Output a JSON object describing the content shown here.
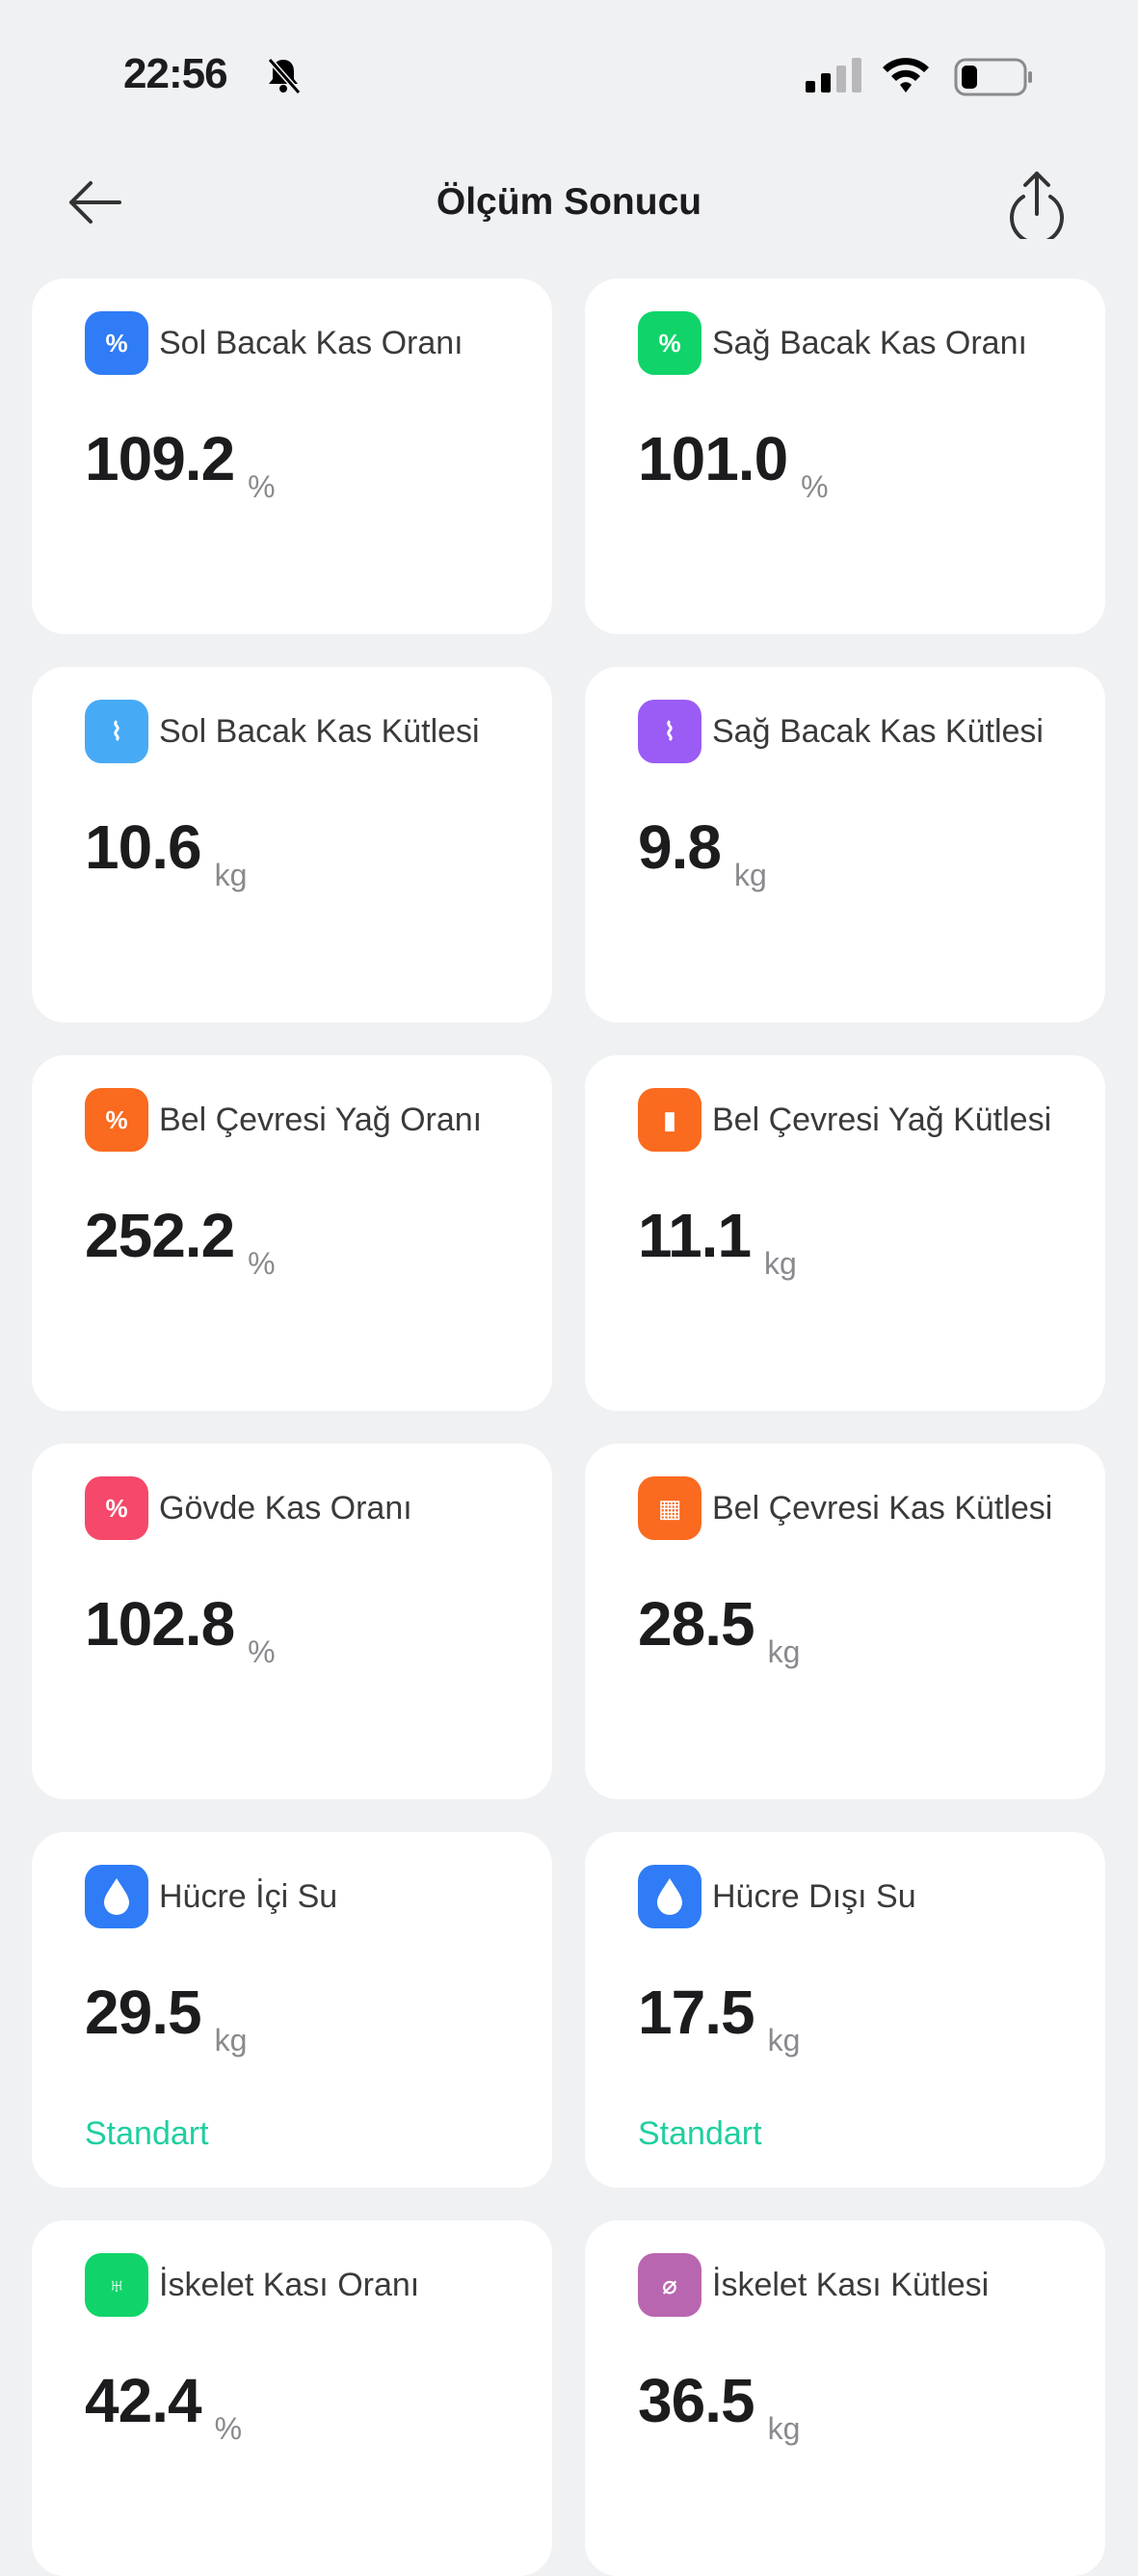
{
  "status_bar": {
    "time": "22:56"
  },
  "header": {
    "title": "Ölçüm Sonucu"
  },
  "cards": [
    {
      "title": "Sol Bacak Kas Oranı",
      "value": "109.2",
      "unit": "%",
      "icon": "leg-muscle-percent-icon",
      "color": "#2f7cf6"
    },
    {
      "title": "Sağ Bacak Kas Oranı",
      "value": "101.0",
      "unit": "%",
      "icon": "leg-muscle-percent-icon",
      "color": "#10d46a"
    },
    {
      "title": "Sol Bacak Kas Kütlesi",
      "value": "10.6",
      "unit": "kg",
      "icon": "leg-muscle-icon",
      "color": "#47aaf5"
    },
    {
      "title": "Sağ Bacak Kas Kütlesi",
      "value": "9.8",
      "unit": "kg",
      "icon": "leg-muscle-icon",
      "color": "#9a5cf5"
    },
    {
      "title": "Bel Çevresi Yağ Oranı",
      "value": "252.2",
      "unit": "%",
      "icon": "torso-fat-percent-icon",
      "color": "#fa6a1f"
    },
    {
      "title": "Bel Çevresi Yağ Kütlesi",
      "value": "11.1",
      "unit": "kg",
      "icon": "torso-fat-icon",
      "color": "#fa6a1f"
    },
    {
      "title": "Gövde Kas Oranı",
      "value": "102.8",
      "unit": "%",
      "icon": "torso-muscle-percent-icon",
      "color": "#f5486a"
    },
    {
      "title": "Bel Çevresi Kas Kütlesi",
      "value": "28.5",
      "unit": "kg",
      "icon": "torso-muscle-icon",
      "color": "#fa6a1f"
    },
    {
      "title": "Hücre İçi Su",
      "value": "29.5",
      "unit": "kg",
      "status": "Standart",
      "icon": "water-drop-icon",
      "color": "#2f7cf6"
    },
    {
      "title": "Hücre Dışı Su",
      "value": "17.5",
      "unit": "kg",
      "status": "Standart",
      "icon": "water-drop-icon",
      "color": "#2f7cf6"
    },
    {
      "title": "İskelet Kası Oranı",
      "value": "42.4",
      "unit": "%",
      "icon": "bone-icon",
      "color": "#10d46a"
    },
    {
      "title": "İskelet Kası Kütlesi",
      "value": "36.5",
      "unit": "kg",
      "icon": "muscle-fiber-icon",
      "color": "#b966b0"
    }
  ]
}
